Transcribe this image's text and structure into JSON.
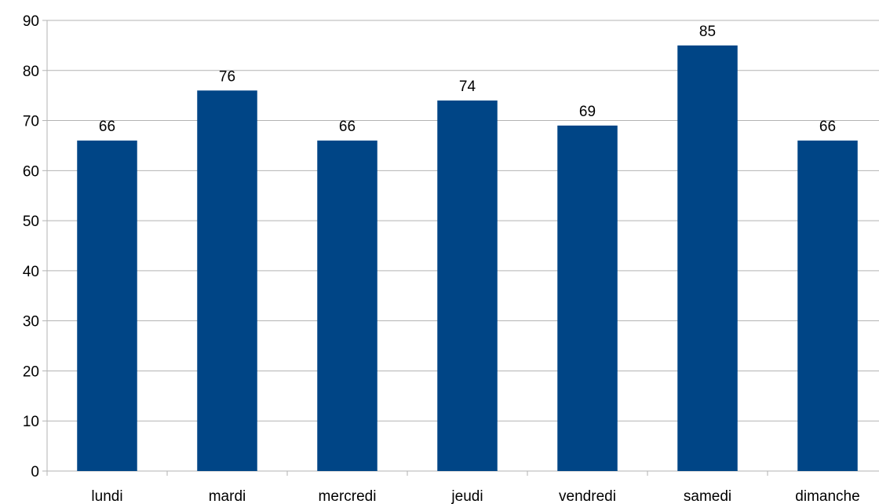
{
  "colors": {
    "bar": "#004586",
    "grid": "#b3b3b3",
    "text": "#000000",
    "background": "#ffffff"
  },
  "chart_data": {
    "type": "bar",
    "title": "",
    "xlabel": "",
    "ylabel": "",
    "ylim": [
      0,
      90
    ],
    "ytick_step": 10,
    "grid": true,
    "legend": "none",
    "categories": [
      "lundi",
      "mardi",
      "mercredi",
      "jeudi",
      "vendredi",
      "samedi",
      "dimanche"
    ],
    "series": [
      {
        "values": [
          66,
          76,
          66,
          74,
          69,
          85,
          66
        ],
        "color": "#004586",
        "show_data_labels": true
      }
    ]
  }
}
